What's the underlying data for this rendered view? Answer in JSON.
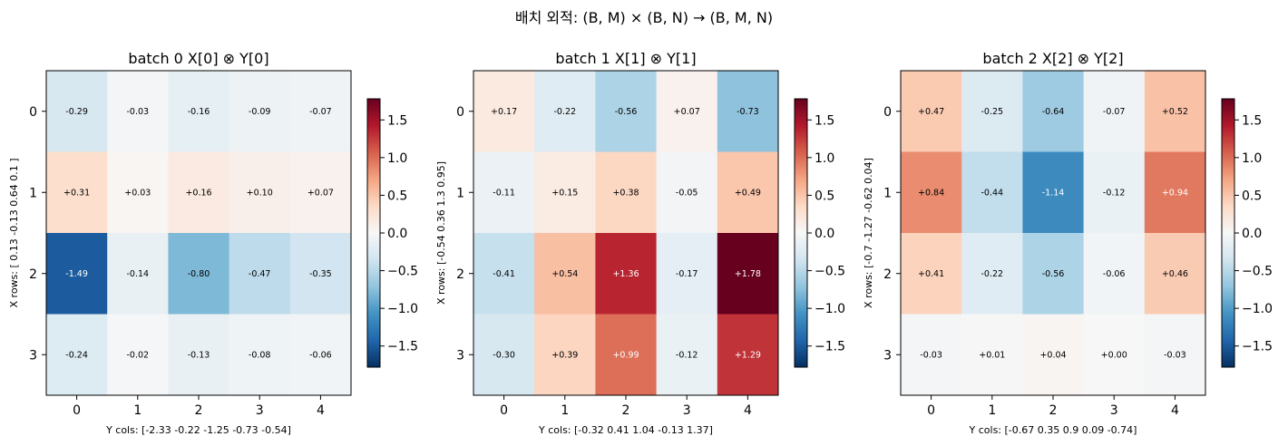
{
  "figure": {
    "suptitle": "배치 외적: (B, M) × (B, N) → (B, M, N)"
  },
  "colors": {
    "cmap": "RdBu_r",
    "low": "#053061",
    "mid": "#f7f7f7",
    "high": "#67001f"
  },
  "chart_data": [
    {
      "type": "heatmap",
      "title": "batch 0   X[0] ⊗ Y[0]",
      "xlabel": "Y cols: [-2.33 -0.22 -1.25 -0.73 -0.54]",
      "ylabel": "X rows: [ 0.13 -0.13  0.64  0.1 ]",
      "x_ticks": [
        "0",
        "1",
        "2",
        "3",
        "4"
      ],
      "y_ticks": [
        "0",
        "1",
        "2",
        "3"
      ],
      "values": [
        [
          -0.29,
          -0.03,
          -0.16,
          -0.09,
          -0.07
        ],
        [
          0.31,
          0.03,
          0.16,
          0.1,
          0.07
        ],
        [
          -1.49,
          -0.14,
          -0.8,
          -0.47,
          -0.35
        ],
        [
          -0.24,
          -0.02,
          -0.13,
          -0.08,
          -0.06
        ]
      ],
      "labels": [
        [
          "-0.29",
          "-0.03",
          "-0.16",
          "-0.09",
          "-0.07"
        ],
        [
          "+0.31",
          "+0.03",
          "+0.16",
          "+0.10",
          "+0.07"
        ],
        [
          "-1.49",
          "-0.14",
          "-0.80",
          "-0.47",
          "-0.35"
        ],
        [
          "-0.24",
          "-0.02",
          "-0.13",
          "-0.08",
          "-0.06"
        ]
      ],
      "vmin": -1.78,
      "vmax": 1.78,
      "colorbar_ticks": [
        1.5,
        1.0,
        0.5,
        0.0,
        -0.5,
        -1.0,
        -1.5
      ],
      "colorbar_tick_labels": [
        "1.5",
        "1.0",
        "0.5",
        "0.0",
        "−0.5",
        "−1.0",
        "−1.5"
      ]
    },
    {
      "type": "heatmap",
      "title": "batch 1   X[1] ⊗ Y[1]",
      "xlabel": "Y cols: [-0.32  0.41  1.04 -0.13  1.37]",
      "ylabel": "X rows: [-0.54  0.36  1.3   0.95]",
      "x_ticks": [
        "0",
        "1",
        "2",
        "3",
        "4"
      ],
      "y_ticks": [
        "0",
        "1",
        "2",
        "3"
      ],
      "values": [
        [
          0.17,
          -0.22,
          -0.56,
          0.07,
          -0.73
        ],
        [
          -0.11,
          0.15,
          0.38,
          -0.05,
          0.49
        ],
        [
          -0.41,
          0.54,
          1.36,
          -0.17,
          1.78
        ],
        [
          -0.3,
          0.39,
          0.99,
          -0.12,
          1.29
        ]
      ],
      "labels": [
        [
          "+0.17",
          "-0.22",
          "-0.56",
          "+0.07",
          "-0.73"
        ],
        [
          "-0.11",
          "+0.15",
          "+0.38",
          "-0.05",
          "+0.49"
        ],
        [
          "-0.41",
          "+0.54",
          "+1.36",
          "-0.17",
          "+1.78"
        ],
        [
          "-0.30",
          "+0.39",
          "+0.99",
          "-0.12",
          "+1.29"
        ]
      ],
      "vmin": -1.78,
      "vmax": 1.78,
      "colorbar_ticks": [
        1.5,
        1.0,
        0.5,
        0.0,
        -0.5,
        -1.0,
        -1.5
      ],
      "colorbar_tick_labels": [
        "1.5",
        "1.0",
        "0.5",
        "0.0",
        "−0.5",
        "−1.0",
        "−1.5"
      ]
    },
    {
      "type": "heatmap",
      "title": "batch 2   X[2] ⊗ Y[2]",
      "xlabel": "Y cols: [-0.67  0.35  0.9   0.09 -0.74]",
      "ylabel": "X rows: [-0.7  -1.27 -0.62  0.04]",
      "x_ticks": [
        "0",
        "1",
        "2",
        "3",
        "4"
      ],
      "y_ticks": [
        "0",
        "1",
        "2",
        "3"
      ],
      "values": [
        [
          0.47,
          -0.25,
          -0.64,
          -0.07,
          0.52
        ],
        [
          0.84,
          -0.44,
          -1.14,
          -0.12,
          0.94
        ],
        [
          0.41,
          -0.22,
          -0.56,
          -0.06,
          0.46
        ],
        [
          -0.03,
          0.01,
          0.04,
          0.0,
          -0.03
        ]
      ],
      "labels": [
        [
          "+0.47",
          "-0.25",
          "-0.64",
          "-0.07",
          "+0.52"
        ],
        [
          "+0.84",
          "-0.44",
          "-1.14",
          "-0.12",
          "+0.94"
        ],
        [
          "+0.41",
          "-0.22",
          "-0.56",
          "-0.06",
          "+0.46"
        ],
        [
          "-0.03",
          "+0.01",
          "+0.04",
          "+0.00",
          "-0.03"
        ]
      ],
      "vmin": -1.78,
      "vmax": 1.78,
      "colorbar_ticks": [
        1.5,
        1.0,
        0.5,
        0.0,
        -0.5,
        -1.0,
        -1.5
      ],
      "colorbar_tick_labels": [
        "1.5",
        "1.0",
        "0.5",
        "0.0",
        "−0.5",
        "−1.0",
        "−1.5"
      ]
    }
  ]
}
